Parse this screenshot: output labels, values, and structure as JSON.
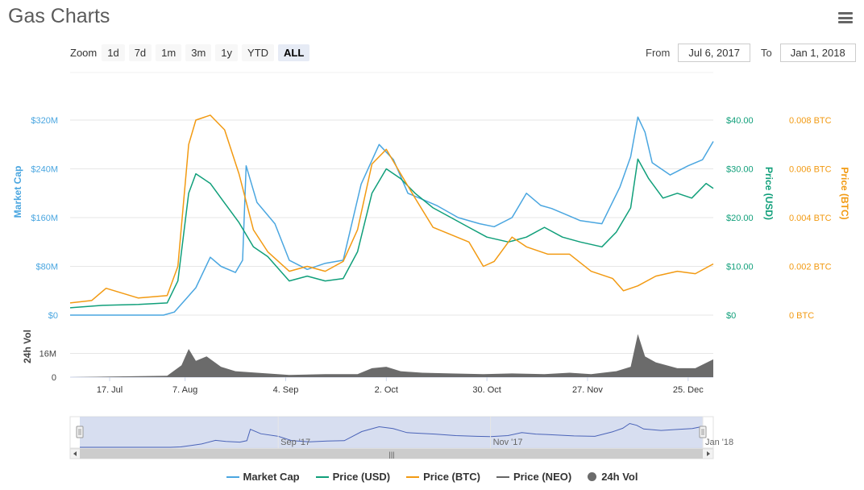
{
  "page": {
    "title": "Gas Charts"
  },
  "toolbar": {
    "zoom_label": "Zoom",
    "zoom_buttons": [
      "1d",
      "7d",
      "1m",
      "3m",
      "1y",
      "YTD",
      "ALL"
    ],
    "active_zoom": "ALL",
    "from_label": "From",
    "from_value": "Jul 6, 2017",
    "to_label": "To",
    "to_value": "Jan 1, 2018"
  },
  "colors": {
    "market_cap": "#4aa6e0",
    "price_usd": "#109f7a",
    "price_btc": "#f29a12",
    "price_neo": "#666666",
    "volume": "#6b6b6b",
    "navigator_fill": "#cdd6ec",
    "navigator_line": "#4a63b8"
  },
  "chart_data": {
    "type": "line",
    "title": "Gas Charts",
    "x_range": [
      "2017-07-06",
      "2018-01-01"
    ],
    "x_ticks": [
      "17. Jul",
      "7. Aug",
      "4. Sep",
      "2. Oct",
      "30. Oct",
      "27. Nov",
      "25. Dec"
    ],
    "x_tick_dates": [
      "2017-07-17",
      "2017-08-07",
      "2017-09-04",
      "2017-10-02",
      "2017-10-30",
      "2017-11-27",
      "2017-12-25"
    ],
    "y_axes": {
      "market_cap": {
        "label": "Market Cap",
        "ticks": [
          "$0",
          "$80M",
          "$160M",
          "$240M",
          "$320M"
        ],
        "range": [
          0,
          320
        ],
        "unit": "M USD"
      },
      "price_usd": {
        "label": "Price (USD)",
        "ticks": [
          "$0",
          "$10.00",
          "$20.00",
          "$30.00",
          "$40.00"
        ],
        "range": [
          0,
          40
        ]
      },
      "price_btc": {
        "label": "Price (BTC)",
        "ticks": [
          "0 BTC",
          "0.002 BTC",
          "0.004 BTC",
          "0.006 BTC",
          "0.008 BTC"
        ],
        "range": [
          0,
          0.008
        ]
      },
      "volume": {
        "label": "24h Vol",
        "ticks": [
          "0",
          "16M"
        ],
        "range": [
          0,
          32
        ]
      }
    },
    "series": [
      {
        "name": "Market Cap",
        "axis": "market_cap",
        "x": [
          "2017-07-06",
          "2017-07-20",
          "2017-08-01",
          "2017-08-04",
          "2017-08-07",
          "2017-08-10",
          "2017-08-14",
          "2017-08-17",
          "2017-08-21",
          "2017-08-23",
          "2017-08-24",
          "2017-08-27",
          "2017-09-01",
          "2017-09-05",
          "2017-09-10",
          "2017-09-15",
          "2017-09-20",
          "2017-09-25",
          "2017-09-30",
          "2017-10-04",
          "2017-10-08",
          "2017-10-12",
          "2017-10-16",
          "2017-10-22",
          "2017-10-28",
          "2017-11-01",
          "2017-11-06",
          "2017-11-10",
          "2017-11-14",
          "2017-11-17",
          "2017-11-21",
          "2017-11-25",
          "2017-12-01",
          "2017-12-06",
          "2017-12-09",
          "2017-12-11",
          "2017-12-13",
          "2017-12-15",
          "2017-12-20",
          "2017-12-25",
          "2017-12-29",
          "2018-01-01"
        ],
        "values": [
          0,
          0,
          0,
          5,
          25,
          45,
          95,
          80,
          70,
          90,
          245,
          185,
          150,
          90,
          75,
          85,
          90,
          215,
          280,
          255,
          200,
          190,
          180,
          160,
          150,
          145,
          160,
          200,
          180,
          175,
          165,
          155,
          150,
          210,
          260,
          325,
          300,
          250,
          230,
          245,
          255,
          285
        ]
      },
      {
        "name": "Price (USD)",
        "axis": "price_usd",
        "x": [
          "2017-07-06",
          "2017-07-15",
          "2017-07-25",
          "2017-08-02",
          "2017-08-05",
          "2017-08-08",
          "2017-08-10",
          "2017-08-14",
          "2017-08-18",
          "2017-08-22",
          "2017-08-26",
          "2017-08-30",
          "2017-09-05",
          "2017-09-10",
          "2017-09-15",
          "2017-09-20",
          "2017-09-24",
          "2017-09-28",
          "2017-10-02",
          "2017-10-06",
          "2017-10-10",
          "2017-10-15",
          "2017-10-20",
          "2017-10-25",
          "2017-10-30",
          "2017-11-05",
          "2017-11-10",
          "2017-11-15",
          "2017-11-20",
          "2017-11-25",
          "2017-12-01",
          "2017-12-05",
          "2017-12-09",
          "2017-12-11",
          "2017-12-14",
          "2017-12-18",
          "2017-12-22",
          "2017-12-26",
          "2017-12-30",
          "2018-01-01"
        ],
        "values": [
          1.5,
          2,
          2.2,
          2.5,
          7,
          25,
          29,
          27,
          23,
          19,
          14,
          12,
          7,
          8,
          7,
          7.5,
          13,
          25,
          30,
          28,
          25,
          22,
          20,
          18,
          16,
          15,
          16,
          18,
          16,
          15,
          14,
          17,
          22,
          32,
          28,
          24,
          25,
          24,
          27,
          26
        ]
      },
      {
        "name": "Price (BTC)",
        "axis": "price_btc",
        "x": [
          "2017-07-06",
          "2017-07-12",
          "2017-07-16",
          "2017-07-25",
          "2017-08-02",
          "2017-08-05",
          "2017-08-08",
          "2017-08-10",
          "2017-08-14",
          "2017-08-18",
          "2017-08-22",
          "2017-08-26",
          "2017-08-30",
          "2017-09-05",
          "2017-09-10",
          "2017-09-15",
          "2017-09-20",
          "2017-09-24",
          "2017-09-28",
          "2017-10-02",
          "2017-10-06",
          "2017-10-10",
          "2017-10-15",
          "2017-10-20",
          "2017-10-25",
          "2017-10-29",
          "2017-11-01",
          "2017-11-06",
          "2017-11-10",
          "2017-11-16",
          "2017-11-22",
          "2017-11-28",
          "2017-12-04",
          "2017-12-07",
          "2017-12-11",
          "2017-12-16",
          "2017-12-22",
          "2017-12-27",
          "2018-01-01"
        ],
        "values": [
          0.0005,
          0.0006,
          0.0011,
          0.0007,
          0.0008,
          0.002,
          0.007,
          0.008,
          0.0082,
          0.0076,
          0.0058,
          0.0035,
          0.0026,
          0.0018,
          0.002,
          0.0018,
          0.0022,
          0.0035,
          0.0062,
          0.0068,
          0.0058,
          0.0048,
          0.0036,
          0.0033,
          0.003,
          0.002,
          0.0022,
          0.0032,
          0.0028,
          0.0025,
          0.0025,
          0.0018,
          0.0015,
          0.001,
          0.0012,
          0.0016,
          0.0018,
          0.0017,
          0.0021
        ]
      }
    ],
    "volume": {
      "name": "24h Vol",
      "x": [
        "2017-07-06",
        "2017-08-02",
        "2017-08-06",
        "2017-08-08",
        "2017-08-10",
        "2017-08-13",
        "2017-08-17",
        "2017-08-21",
        "2017-08-27",
        "2017-09-05",
        "2017-09-15",
        "2017-09-24",
        "2017-09-28",
        "2017-10-02",
        "2017-10-06",
        "2017-10-12",
        "2017-10-20",
        "2017-10-29",
        "2017-11-06",
        "2017-11-15",
        "2017-11-22",
        "2017-11-28",
        "2017-12-05",
        "2017-12-09",
        "2017-12-11",
        "2017-12-13",
        "2017-12-16",
        "2017-12-22",
        "2017-12-27",
        "2018-01-01"
      ],
      "values": [
        0,
        1,
        8,
        19,
        11,
        14,
        7,
        4,
        3,
        1.5,
        2,
        2,
        6,
        7,
        4,
        3,
        2.5,
        2,
        2.5,
        2,
        3,
        2,
        4,
        7,
        29,
        14,
        10,
        6,
        6,
        12
      ]
    },
    "legend": [
      "Market Cap",
      "Price (USD)",
      "Price (BTC)",
      "Price (NEO)",
      "24h Vol"
    ],
    "legend_position": "bottom",
    "navigator_ticks": [
      "Sep '17",
      "Nov '17",
      "Jan '18"
    ]
  }
}
